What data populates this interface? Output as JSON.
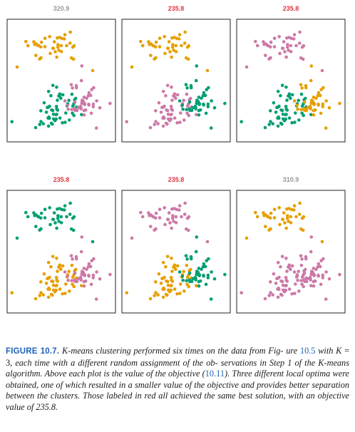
{
  "colors": {
    "pink": "#cc79a7",
    "orange": "#e69f00",
    "green": "#009e73",
    "best_title": "#e0353f",
    "other_title": "#999999",
    "figure_label": "#1f62b8"
  },
  "panels": [
    {
      "objective": "320.9",
      "best": false,
      "assign": [
        "orange",
        "green",
        "pink"
      ]
    },
    {
      "objective": "235.8",
      "best": true,
      "assign": [
        "orange",
        "pink",
        "green"
      ]
    },
    {
      "objective": "235.8",
      "best": true,
      "assign": [
        "pink",
        "green",
        "orange"
      ]
    },
    {
      "objective": "235.8",
      "best": true,
      "assign": [
        "green",
        "orange",
        "pink"
      ]
    },
    {
      "objective": "235.8",
      "best": true,
      "assign": [
        "pink",
        "orange",
        "green"
      ]
    },
    {
      "objective": "310.9",
      "best": false,
      "assign": [
        "orange",
        "pink",
        "pink"
      ]
    }
  ],
  "caption": {
    "figure_label": "FIGURE 10.7.",
    "text_1": "K",
    "text_2": "-means clustering performed six times on the data from Fig- ure ",
    "ref_1": "10.5",
    "text_3": " with ",
    "text_4": "K",
    "text_5": " = 3",
    "text_6": ", each time with a different random assignment of the ob- servations in Step 1 of the ",
    "text_7": "K",
    "text_8": "-means algorithm. Above each plot is the value of the objective (",
    "ref_2": "10.11",
    "text_9": "). Three different local optima were obtained, one of which resulted in a smaller value of the objective and provides better separation between the clusters. Those labeled in red all achieved the same best solution, with an objective value of 235.8."
  }
}
